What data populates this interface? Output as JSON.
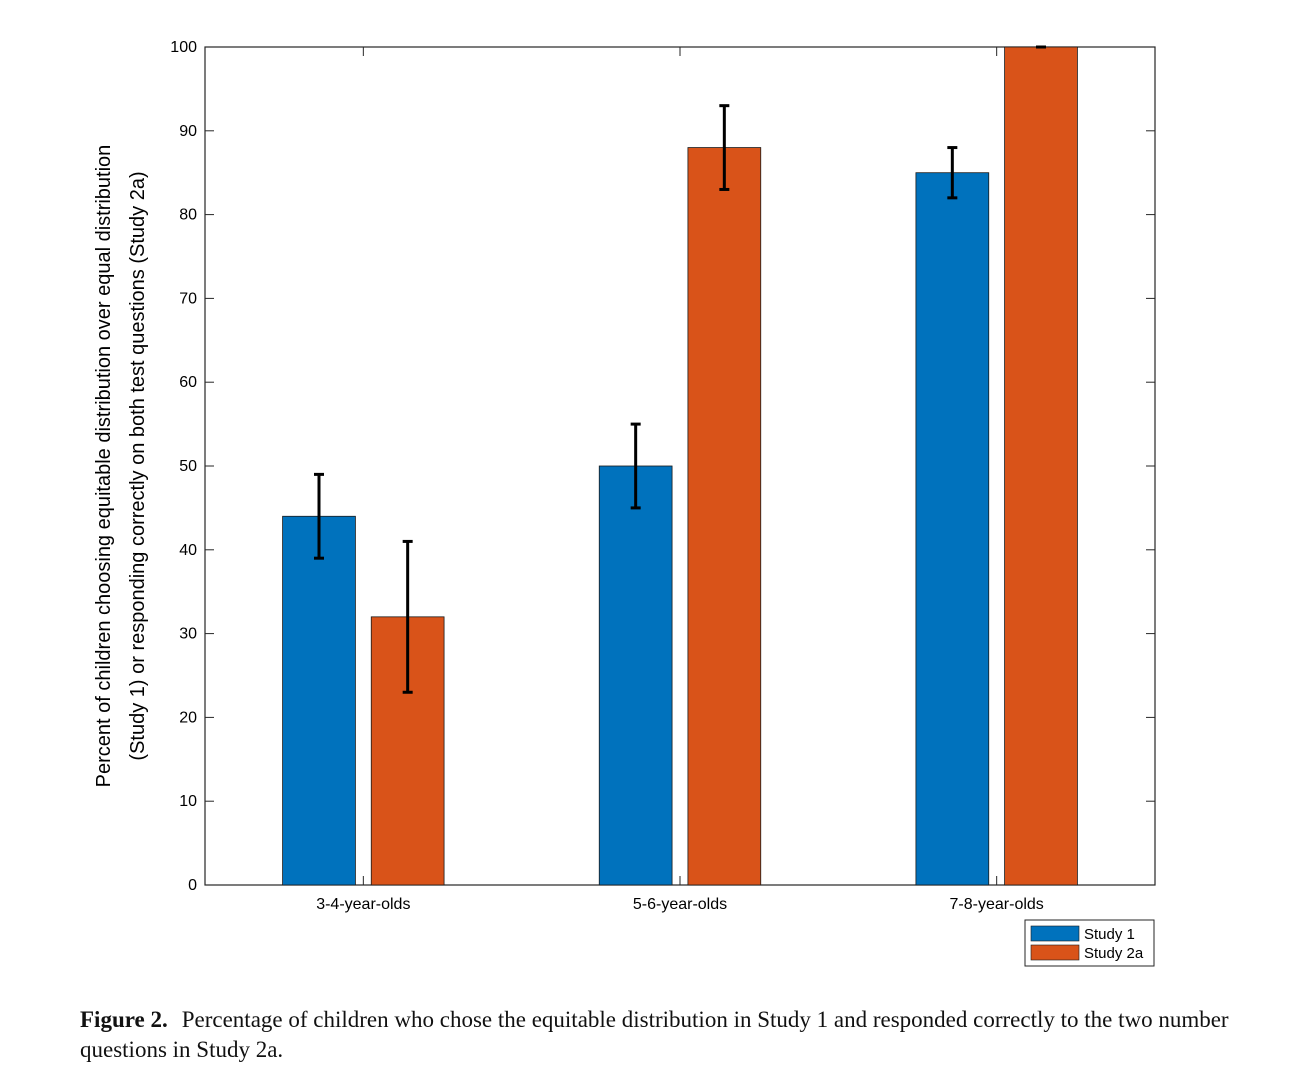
{
  "chart_data": {
    "type": "bar",
    "categories": [
      "3-4-year-olds",
      "5-6-year-olds",
      "7-8-year-olds"
    ],
    "series": [
      {
        "name": "Study 1",
        "values": [
          44,
          50,
          85
        ],
        "error": [
          5,
          5,
          3
        ],
        "color": "#0072BD"
      },
      {
        "name": "Study 2a",
        "values": [
          32,
          88,
          100
        ],
        "error": [
          9,
          5,
          0
        ],
        "color": "#D95319"
      }
    ],
    "ylabel_lines": [
      "Percent of children choosing equitable distribution over equal distribution",
      "(Study 1) or responding correctly on both test questions (Study 2a)"
    ],
    "ylim": [
      0,
      100
    ],
    "yticks": [
      0,
      10,
      20,
      30,
      40,
      50,
      60,
      70,
      80,
      90,
      100
    ],
    "grid": false,
    "legend_position": "bottom-right"
  },
  "caption": {
    "label": "Figure 2.",
    "text": "Percentage of children who chose the equitable distribution in Study 1 and responded correctly to the two number questions in Study 2a."
  }
}
